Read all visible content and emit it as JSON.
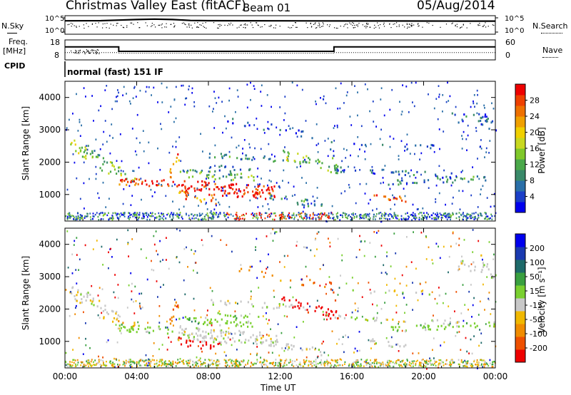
{
  "header": {
    "station": "Christmas Valley East (fitACF)",
    "beam": "Beam 01",
    "date": "05/Aug/2014"
  },
  "strip": {
    "nsky_label": "N.Sky",
    "nsearch_label": "N.Search",
    "freq_label_line1": "Freq.",
    "freq_label_line2": "[MHz]",
    "nave_label": "Nave",
    "cpid_label": "CPID",
    "cpid_value": "normal (fast) 151 IF",
    "noise_left_ticks": [
      "10^5",
      "10^0"
    ],
    "noise_right_ticks": [
      "10^5",
      "10^0"
    ],
    "freq_left_ticks": [
      "18",
      "8"
    ],
    "nave_right_ticks": [
      "60",
      "0"
    ]
  },
  "colorbars": {
    "power": {
      "label": "Power [dB]",
      "ticks": [
        "28",
        "24",
        "20",
        "16",
        "12",
        "8",
        "4"
      ],
      "colors": [
        "#0000ee",
        "#1b3fc8",
        "#2a6fa8",
        "#3a8a6a",
        "#4aa84a",
        "#7fc82a",
        "#c8d820",
        "#f0d000",
        "#f0a000",
        "#ee7000",
        "#ee4000",
        "#ee0000"
      ]
    },
    "velocity": {
      "label": "Velocity [m s⁻¹]",
      "ticks": [
        "200",
        "100",
        "50",
        "15",
        "-15",
        "-50",
        "-100",
        "-200"
      ],
      "colors": [
        "#ee0000",
        "#ee5000",
        "#f08c00",
        "#f0b800",
        "#c8c8c8",
        "#7ad030",
        "#3aa040",
        "#1e6a6a",
        "#1a3ab0",
        "#0000ee"
      ]
    }
  },
  "chart_data": [
    {
      "type": "line",
      "title": "N.Sky / N.Search",
      "ylabel": "",
      "yscale": "log",
      "ylim": [
        1,
        100000
      ],
      "x": [
        "00:00",
        "02:00",
        "03:00",
        "04:00",
        "05:00",
        "06:00",
        "07:00",
        "08:00",
        "10:00",
        "12:00",
        "14:00",
        "16:00",
        "18:00",
        "20:00",
        "22:00",
        "24:00"
      ],
      "series": [
        {
          "name": "N.Sky",
          "values": [
            4200,
            4500,
            6500,
            9000,
            12000,
            9000,
            5200,
            4600,
            4300,
            4100,
            4000,
            3800,
            3700,
            3600,
            3500,
            3400
          ]
        }
      ]
    },
    {
      "type": "line",
      "title": "Freq. / Nave",
      "ylabel": "Freq. [MHz]",
      "ylim": [
        8,
        18
      ],
      "x": [
        "00:00",
        "03:00",
        "03:00",
        "15:00",
        "15:00",
        "24:00"
      ],
      "series": [
        {
          "name": "Freq.",
          "values": [
            14.5,
            14.5,
            12.3,
            12.3,
            14.5,
            14.5
          ]
        },
        {
          "name": "Nave",
          "values": [
            22,
            22,
            20,
            20,
            22,
            22
          ]
        }
      ]
    },
    {
      "type": "heatmap",
      "title": "Power",
      "xlabel": "",
      "ylabel": "Slant Range [km]",
      "xlim": [
        "00:00",
        "24:00"
      ],
      "ylim": [
        180,
        4500
      ],
      "x_ticks": [
        "00:00",
        "04:00",
        "08:00",
        "12:00",
        "16:00",
        "20:00",
        "00:00"
      ],
      "y_ticks": [
        "1000",
        "2000",
        "3000",
        "4000"
      ],
      "colorbar": "Power [dB]"
    },
    {
      "type": "heatmap",
      "title": "Velocity",
      "xlabel": "Time UT",
      "ylabel": "Slant Range [km]",
      "xlim": [
        "00:00",
        "24:00"
      ],
      "ylim": [
        180,
        4500
      ],
      "x_ticks": [
        "00:00",
        "04:00",
        "08:00",
        "12:00",
        "16:00",
        "20:00",
        "00:00"
      ],
      "y_ticks": [
        "1000",
        "2000",
        "3000",
        "4000"
      ],
      "colorbar": "Velocity [m s⁻¹]"
    }
  ]
}
